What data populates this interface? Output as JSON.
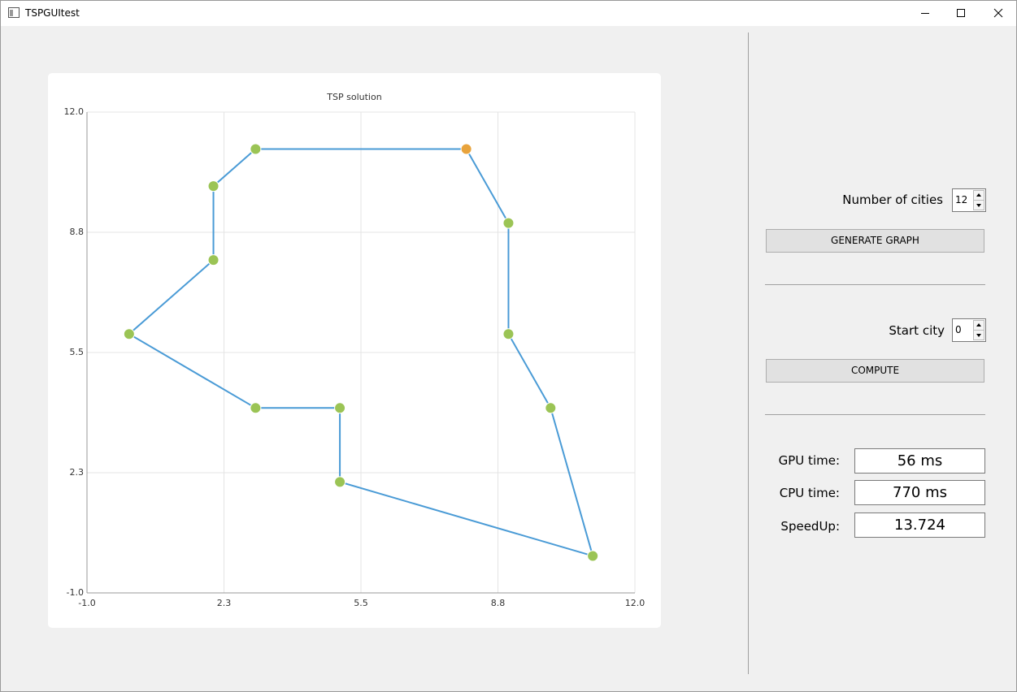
{
  "window": {
    "title": "TSPGUItest"
  },
  "chart_data": {
    "type": "tour",
    "title": "TSP solution",
    "xlim": [
      -1,
      12
    ],
    "ylim": [
      -1,
      12
    ],
    "xticks": [
      {
        "value": -1,
        "label": "-1.0"
      },
      {
        "value": 2.25,
        "label": "2.3"
      },
      5.5,
      {
        "value": 8.75,
        "label": "8.8"
      },
      {
        "value": 12,
        "label": "12.0"
      }
    ],
    "yticks": [
      {
        "value": -1,
        "label": "-1.0"
      },
      {
        "value": 2.25,
        "label": "2.3"
      },
      5.5,
      {
        "value": 8.75,
        "label": "8.8"
      },
      {
        "value": 12,
        "label": "12.0"
      }
    ],
    "grid": true,
    "tour": {
      "color": "#4a9bd6",
      "x": [
        8,
        9,
        9,
        10,
        11,
        5,
        5,
        3,
        0,
        2,
        2,
        3,
        8
      ],
      "y": [
        11,
        9,
        6,
        4,
        0,
        2,
        4,
        4,
        6,
        8,
        10,
        11,
        11
      ]
    },
    "cities": {
      "color": "#9bc455",
      "x": [
        9,
        9,
        10,
        11,
        5,
        5,
        3,
        0,
        2,
        2,
        3
      ],
      "y": [
        9,
        6,
        4,
        0,
        2,
        4,
        4,
        6,
        8,
        10,
        11
      ]
    },
    "start_city": {
      "color": "#e8a33c",
      "x": [
        8
      ],
      "y": [
        11
      ]
    }
  },
  "controls": {
    "cities_label": "Number of cities",
    "cities_value": 12,
    "generate_button": "GENERATE GRAPH",
    "start_label": "Start city",
    "start_value": 0,
    "compute_button": "COMPUTE",
    "gpu_label": "GPU time:",
    "gpu_value": "56 ms",
    "cpu_label": "CPU time:",
    "cpu_value": "770 ms",
    "speedup_label": "SpeedUp:",
    "speedup_value": "13.724"
  }
}
